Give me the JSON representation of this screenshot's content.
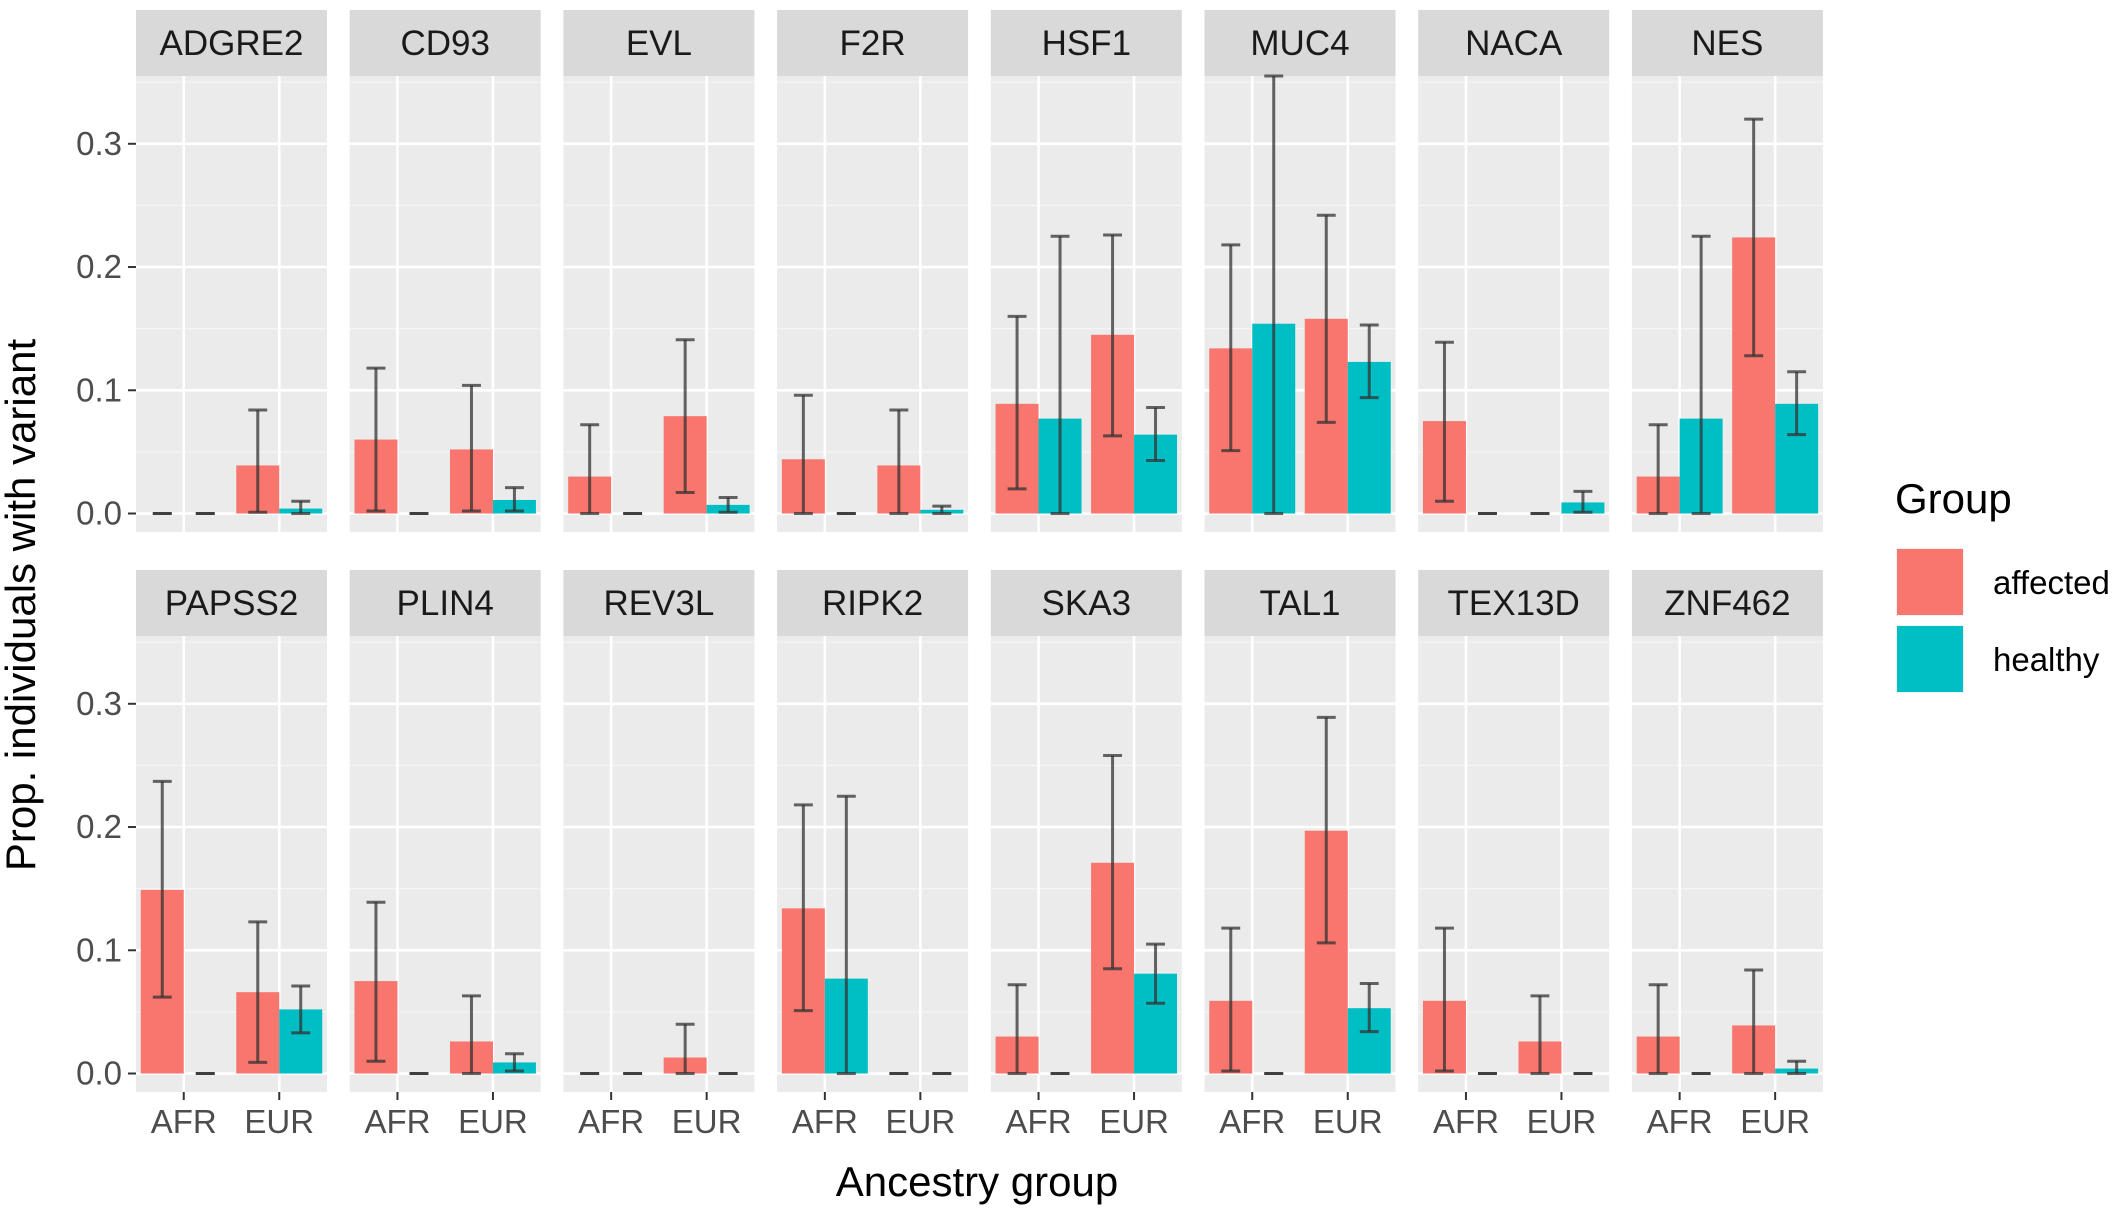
{
  "chart_data": {
    "type": "bar",
    "xlabel": "Ancestry group",
    "ylabel": "Prop. individuals with variant",
    "categories": [
      "AFR",
      "EUR"
    ],
    "ylim": [
      -0.015,
      0.355
    ],
    "yticks": [
      0.0,
      0.1,
      0.2,
      0.3
    ],
    "ytick_labels": [
      "0.0",
      "0.1",
      "0.2",
      "0.3"
    ],
    "grid": true,
    "legend": {
      "title": "Group",
      "position": "right",
      "entries": [
        {
          "name": "affected",
          "color": "#F8766D"
        },
        {
          "name": "healthy",
          "color": "#00BFC4"
        }
      ]
    },
    "colors": {
      "affected": "#F8766D",
      "healthy": "#00BFC4"
    },
    "facets": [
      {
        "gene": "ADGRE2",
        "bars": [
          {
            "group": "affected",
            "ancestry": "AFR",
            "value": 0.0,
            "lo": 0.0,
            "hi": 0.0
          },
          {
            "group": "healthy",
            "ancestry": "AFR",
            "value": 0.0,
            "lo": 0.0,
            "hi": 0.0
          },
          {
            "group": "affected",
            "ancestry": "EUR",
            "value": 0.039,
            "lo": 0.001,
            "hi": 0.084
          },
          {
            "group": "healthy",
            "ancestry": "EUR",
            "value": 0.004,
            "lo": 0.0,
            "hi": 0.01
          }
        ]
      },
      {
        "gene": "CD93",
        "bars": [
          {
            "group": "affected",
            "ancestry": "AFR",
            "value": 0.06,
            "lo": 0.002,
            "hi": 0.118
          },
          {
            "group": "healthy",
            "ancestry": "AFR",
            "value": 0.0,
            "lo": 0.0,
            "hi": 0.0
          },
          {
            "group": "affected",
            "ancestry": "EUR",
            "value": 0.052,
            "lo": 0.002,
            "hi": 0.104
          },
          {
            "group": "healthy",
            "ancestry": "EUR",
            "value": 0.011,
            "lo": 0.002,
            "hi": 0.021
          }
        ]
      },
      {
        "gene": "EVL",
        "bars": [
          {
            "group": "affected",
            "ancestry": "AFR",
            "value": 0.03,
            "lo": 0.0,
            "hi": 0.072
          },
          {
            "group": "healthy",
            "ancestry": "AFR",
            "value": 0.0,
            "lo": 0.0,
            "hi": 0.0
          },
          {
            "group": "affected",
            "ancestry": "EUR",
            "value": 0.079,
            "lo": 0.017,
            "hi": 0.141
          },
          {
            "group": "healthy",
            "ancestry": "EUR",
            "value": 0.007,
            "lo": 0.001,
            "hi": 0.013
          }
        ]
      },
      {
        "gene": "F2R",
        "bars": [
          {
            "group": "affected",
            "ancestry": "AFR",
            "value": 0.044,
            "lo": 0.0,
            "hi": 0.096
          },
          {
            "group": "healthy",
            "ancestry": "AFR",
            "value": 0.0,
            "lo": 0.0,
            "hi": 0.0
          },
          {
            "group": "affected",
            "ancestry": "EUR",
            "value": 0.039,
            "lo": 0.0,
            "hi": 0.084
          },
          {
            "group": "healthy",
            "ancestry": "EUR",
            "value": 0.003,
            "lo": 0.0,
            "hi": 0.006
          }
        ]
      },
      {
        "gene": "HSF1",
        "bars": [
          {
            "group": "affected",
            "ancestry": "AFR",
            "value": 0.089,
            "lo": 0.02,
            "hi": 0.16
          },
          {
            "group": "healthy",
            "ancestry": "AFR",
            "value": 0.077,
            "lo": 0.0,
            "hi": 0.225
          },
          {
            "group": "affected",
            "ancestry": "EUR",
            "value": 0.145,
            "lo": 0.063,
            "hi": 0.226
          },
          {
            "group": "healthy",
            "ancestry": "EUR",
            "value": 0.064,
            "lo": 0.043,
            "hi": 0.086
          }
        ]
      },
      {
        "gene": "MUC4",
        "bars": [
          {
            "group": "affected",
            "ancestry": "AFR",
            "value": 0.134,
            "lo": 0.051,
            "hi": 0.218
          },
          {
            "group": "healthy",
            "ancestry": "AFR",
            "value": 0.154,
            "lo": 0.0,
            "hi": 0.355
          },
          {
            "group": "affected",
            "ancestry": "EUR",
            "value": 0.158,
            "lo": 0.074,
            "hi": 0.242
          },
          {
            "group": "healthy",
            "ancestry": "EUR",
            "value": 0.123,
            "lo": 0.094,
            "hi": 0.153
          }
        ]
      },
      {
        "gene": "NACA",
        "bars": [
          {
            "group": "affected",
            "ancestry": "AFR",
            "value": 0.075,
            "lo": 0.01,
            "hi": 0.139
          },
          {
            "group": "healthy",
            "ancestry": "AFR",
            "value": 0.0,
            "lo": 0.0,
            "hi": 0.0
          },
          {
            "group": "affected",
            "ancestry": "EUR",
            "value": 0.0,
            "lo": 0.0,
            "hi": 0.0
          },
          {
            "group": "healthy",
            "ancestry": "EUR",
            "value": 0.009,
            "lo": 0.001,
            "hi": 0.018
          }
        ]
      },
      {
        "gene": "NES",
        "bars": [
          {
            "group": "affected",
            "ancestry": "AFR",
            "value": 0.03,
            "lo": 0.0,
            "hi": 0.072
          },
          {
            "group": "healthy",
            "ancestry": "AFR",
            "value": 0.077,
            "lo": 0.0,
            "hi": 0.225
          },
          {
            "group": "affected",
            "ancestry": "EUR",
            "value": 0.224,
            "lo": 0.128,
            "hi": 0.32
          },
          {
            "group": "healthy",
            "ancestry": "EUR",
            "value": 0.089,
            "lo": 0.064,
            "hi": 0.115
          }
        ]
      },
      {
        "gene": "PAPSS2",
        "bars": [
          {
            "group": "affected",
            "ancestry": "AFR",
            "value": 0.149,
            "lo": 0.062,
            "hi": 0.237
          },
          {
            "group": "healthy",
            "ancestry": "AFR",
            "value": 0.0,
            "lo": 0.0,
            "hi": 0.0
          },
          {
            "group": "affected",
            "ancestry": "EUR",
            "value": 0.066,
            "lo": 0.009,
            "hi": 0.123
          },
          {
            "group": "healthy",
            "ancestry": "EUR",
            "value": 0.052,
            "lo": 0.033,
            "hi": 0.071
          }
        ]
      },
      {
        "gene": "PLIN4",
        "bars": [
          {
            "group": "affected",
            "ancestry": "AFR",
            "value": 0.075,
            "lo": 0.01,
            "hi": 0.139
          },
          {
            "group": "healthy",
            "ancestry": "AFR",
            "value": 0.0,
            "lo": 0.0,
            "hi": 0.0
          },
          {
            "group": "affected",
            "ancestry": "EUR",
            "value": 0.026,
            "lo": 0.0,
            "hi": 0.063
          },
          {
            "group": "healthy",
            "ancestry": "EUR",
            "value": 0.009,
            "lo": 0.002,
            "hi": 0.016
          }
        ]
      },
      {
        "gene": "REV3L",
        "bars": [
          {
            "group": "affected",
            "ancestry": "AFR",
            "value": 0.0,
            "lo": 0.0,
            "hi": 0.0
          },
          {
            "group": "healthy",
            "ancestry": "AFR",
            "value": 0.0,
            "lo": 0.0,
            "hi": 0.0
          },
          {
            "group": "affected",
            "ancestry": "EUR",
            "value": 0.013,
            "lo": 0.0,
            "hi": 0.04
          },
          {
            "group": "healthy",
            "ancestry": "EUR",
            "value": 0.0,
            "lo": 0.0,
            "hi": 0.0
          }
        ]
      },
      {
        "gene": "RIPK2",
        "bars": [
          {
            "group": "affected",
            "ancestry": "AFR",
            "value": 0.134,
            "lo": 0.051,
            "hi": 0.218
          },
          {
            "group": "healthy",
            "ancestry": "AFR",
            "value": 0.077,
            "lo": 0.0,
            "hi": 0.225
          },
          {
            "group": "affected",
            "ancestry": "EUR",
            "value": 0.0,
            "lo": 0.0,
            "hi": 0.0
          },
          {
            "group": "healthy",
            "ancestry": "EUR",
            "value": 0.0,
            "lo": 0.0,
            "hi": 0.0
          }
        ]
      },
      {
        "gene": "SKA3",
        "bars": [
          {
            "group": "affected",
            "ancestry": "AFR",
            "value": 0.03,
            "lo": 0.0,
            "hi": 0.072
          },
          {
            "group": "healthy",
            "ancestry": "AFR",
            "value": 0.0,
            "lo": 0.0,
            "hi": 0.0
          },
          {
            "group": "affected",
            "ancestry": "EUR",
            "value": 0.171,
            "lo": 0.085,
            "hi": 0.258
          },
          {
            "group": "healthy",
            "ancestry": "EUR",
            "value": 0.081,
            "lo": 0.057,
            "hi": 0.105
          }
        ]
      },
      {
        "gene": "TAL1",
        "bars": [
          {
            "group": "affected",
            "ancestry": "AFR",
            "value": 0.059,
            "lo": 0.002,
            "hi": 0.118
          },
          {
            "group": "healthy",
            "ancestry": "AFR",
            "value": 0.0,
            "lo": 0.0,
            "hi": 0.0
          },
          {
            "group": "affected",
            "ancestry": "EUR",
            "value": 0.197,
            "lo": 0.106,
            "hi": 0.289
          },
          {
            "group": "healthy",
            "ancestry": "EUR",
            "value": 0.053,
            "lo": 0.034,
            "hi": 0.073
          }
        ]
      },
      {
        "gene": "TEX13D",
        "bars": [
          {
            "group": "affected",
            "ancestry": "AFR",
            "value": 0.059,
            "lo": 0.002,
            "hi": 0.118
          },
          {
            "group": "healthy",
            "ancestry": "AFR",
            "value": 0.0,
            "lo": 0.0,
            "hi": 0.0
          },
          {
            "group": "affected",
            "ancestry": "EUR",
            "value": 0.026,
            "lo": 0.0,
            "hi": 0.063
          },
          {
            "group": "healthy",
            "ancestry": "EUR",
            "value": 0.0,
            "lo": 0.0,
            "hi": 0.0
          }
        ]
      },
      {
        "gene": "ZNF462",
        "bars": [
          {
            "group": "affected",
            "ancestry": "AFR",
            "value": 0.03,
            "lo": 0.0,
            "hi": 0.072
          },
          {
            "group": "healthy",
            "ancestry": "AFR",
            "value": 0.0,
            "lo": 0.0,
            "hi": 0.0
          },
          {
            "group": "affected",
            "ancestry": "EUR",
            "value": 0.039,
            "lo": 0.0,
            "hi": 0.084
          },
          {
            "group": "healthy",
            "ancestry": "EUR",
            "value": 0.004,
            "lo": 0.0,
            "hi": 0.01
          }
        ]
      }
    ]
  }
}
